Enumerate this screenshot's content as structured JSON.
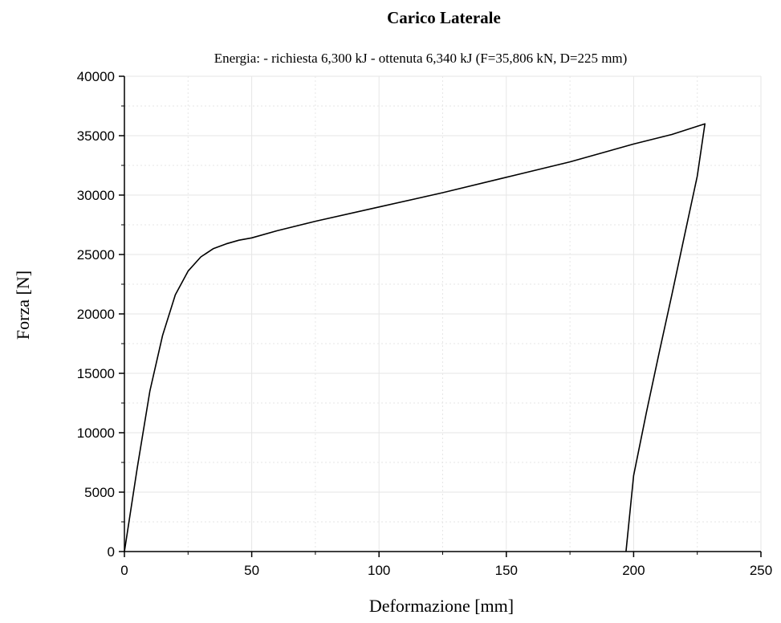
{
  "chart_data": {
    "type": "line",
    "title": "Carico Laterale",
    "subtitle": "Energia: - richiesta 6,300 kJ - ottenuta 6,340 kJ (F=35,806 kN, D=225 mm)",
    "xlabel": "Deformazione [mm]",
    "ylabel": "Forza [N]",
    "xlim": [
      0,
      250
    ],
    "ylim": [
      0,
      40000
    ],
    "x_ticks": [
      0,
      50,
      100,
      150,
      200,
      250
    ],
    "y_ticks": [
      0,
      5000,
      10000,
      15000,
      20000,
      25000,
      30000,
      35000,
      40000
    ],
    "grid": true,
    "line_color": "#000000",
    "grid_color": "#e6e6e6",
    "series": [
      {
        "x": [
          0,
          5,
          10,
          15,
          20,
          25,
          30,
          35,
          40,
          45,
          50,
          60,
          75,
          100,
          125,
          150,
          175,
          200,
          215,
          228,
          225,
          220,
          215,
          210,
          205,
          200,
          197
        ],
        "y": [
          0,
          7000,
          13500,
          18200,
          21600,
          23600,
          24800,
          25500,
          25900,
          26200,
          26400,
          27000,
          27800,
          29000,
          30200,
          31500,
          32800,
          34300,
          35100,
          36000,
          31600,
          26600,
          21600,
          16700,
          11700,
          6400,
          0
        ]
      }
    ]
  }
}
